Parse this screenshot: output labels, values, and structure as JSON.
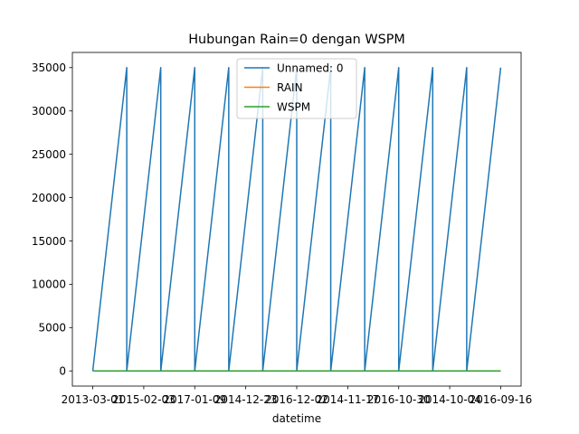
{
  "chart_data": {
    "type": "line",
    "title": "Hubungan Rain=0 dengan WSPM",
    "xlabel": "datetime",
    "ylabel": "",
    "ylim": [
      -1750,
      36750
    ],
    "yticks": [
      0,
      5000,
      10000,
      15000,
      20000,
      25000,
      30000,
      35000
    ],
    "x_tick_labels": [
      "2013-03-01",
      "2015-02-03",
      "2017-01-09",
      "2014-12-23",
      "2016-12-02",
      "2014-11-17",
      "2016-10-30",
      "2014-10-04",
      "2016-09-16"
    ],
    "x_tick_positions": [
      0,
      12,
      24,
      36,
      48,
      60,
      72,
      84,
      96
    ],
    "x_index_range": [
      0,
      96
    ],
    "legend": {
      "position": "top-center",
      "entries": [
        "Unnamed: 0",
        "RAIN",
        "WSPM"
      ]
    },
    "grid": false,
    "series": [
      {
        "name": "Unnamed: 0",
        "color": "#1f77b4",
        "x": [
          0,
          8,
          8,
          16,
          16,
          24,
          24,
          32,
          32,
          40,
          40,
          48,
          48,
          56,
          56,
          64,
          64,
          72,
          72,
          80,
          80,
          88,
          88,
          96
        ],
        "values": [
          0,
          35000,
          0,
          35000,
          0,
          35000,
          0,
          35000,
          0,
          35000,
          0,
          35000,
          0,
          35000,
          0,
          35000,
          0,
          35000,
          0,
          35000,
          0,
          35000,
          0,
          35000
        ]
      },
      {
        "name": "RAIN",
        "color": "#ff7f0e",
        "x": [
          0,
          96
        ],
        "values": [
          0,
          0
        ]
      },
      {
        "name": "WSPM",
        "color": "#2ca02c",
        "x": [
          0,
          96
        ],
        "values": [
          0,
          0
        ]
      }
    ]
  }
}
